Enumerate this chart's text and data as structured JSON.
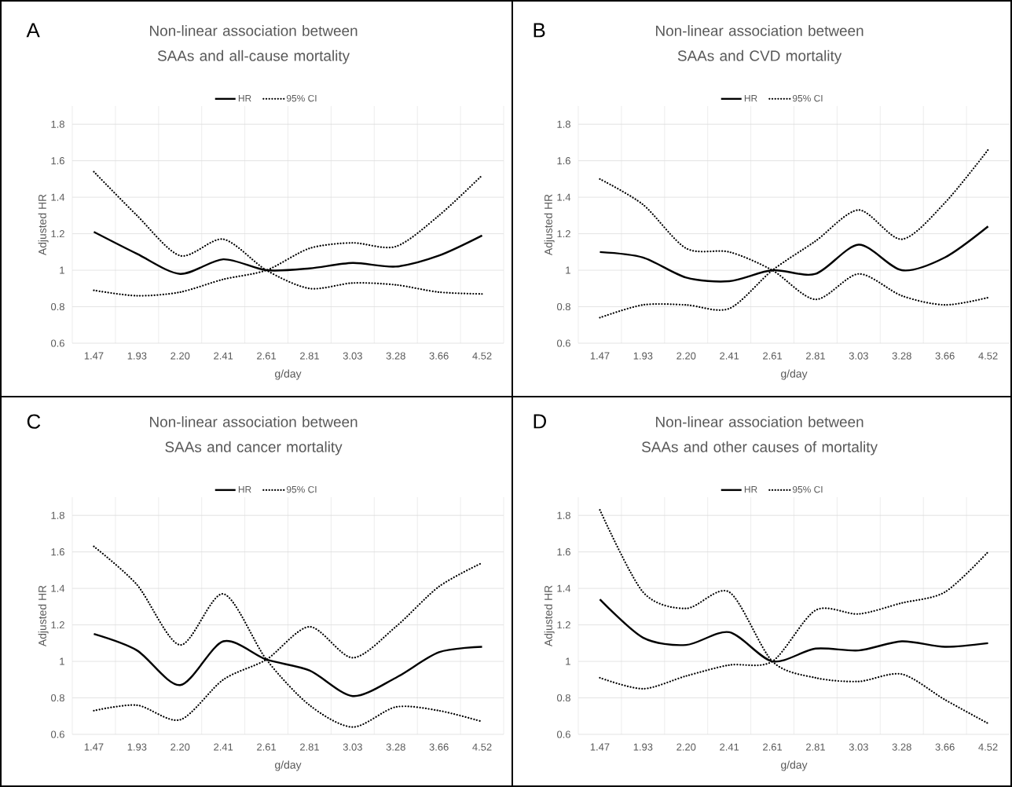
{
  "chart_data": [
    {
      "type": "line",
      "title": "Non-linear association between SAAs and all-cause mortality",
      "xlabel": "g/day",
      "ylabel": "Adjusted HR",
      "annotations": [
        "A"
      ],
      "categories": [
        "1.47",
        "1.93",
        "2.20",
        "2.41",
        "2.61",
        "2.81",
        "3.03",
        "3.28",
        "3.66",
        "4.52"
      ],
      "ylim": [
        0.6,
        1.9
      ],
      "yticks": [
        0.6,
        0.8,
        1,
        1.2,
        1.4,
        1.6,
        1.8
      ],
      "grid": true,
      "legend": "top",
      "series": [
        {
          "name": "HR",
          "color": "#000000",
          "line_style": "solid",
          "values": [
            1.21,
            1.09,
            0.98,
            1.06,
            1.0,
            1.01,
            1.04,
            1.02,
            1.08,
            1.19
          ]
        },
        {
          "name": "95% CI",
          "color": "#000000",
          "line_style": "dotted",
          "values": [
            1.54,
            1.3,
            1.08,
            1.17,
            1.0,
            0.9,
            0.93,
            0.92,
            0.88,
            0.87
          ]
        },
        {
          "color": "#000000",
          "line_style": "dotted",
          "values": [
            0.89,
            0.86,
            0.88,
            0.95,
            1.0,
            1.12,
            1.15,
            1.13,
            1.3,
            1.52
          ]
        }
      ]
    },
    {
      "type": "line",
      "title": "Non-linear association between SAAs and CVD mortality",
      "xlabel": "g/day",
      "ylabel": "Adjusted HR",
      "annotations": [
        "B"
      ],
      "categories": [
        "1.47",
        "1.93",
        "2.20",
        "2.41",
        "2.61",
        "2.81",
        "3.03",
        "3.28",
        "3.66",
        "4.52"
      ],
      "ylim": [
        0.6,
        1.9
      ],
      "yticks": [
        0.6,
        0.8,
        1,
        1.2,
        1.4,
        1.6,
        1.8
      ],
      "grid": true,
      "legend": "top",
      "series": [
        {
          "name": "HR",
          "color": "#000000",
          "line_style": "solid",
          "values": [
            1.1,
            1.07,
            0.96,
            0.94,
            1.0,
            0.98,
            1.14,
            1.0,
            1.07,
            1.24
          ]
        },
        {
          "name": "95% CI",
          "color": "#000000",
          "line_style": "dotted",
          "values": [
            1.5,
            1.36,
            1.12,
            1.1,
            1.0,
            0.84,
            0.98,
            0.86,
            0.81,
            0.85
          ]
        },
        {
          "color": "#000000",
          "line_style": "dotted",
          "values": [
            0.74,
            0.81,
            0.81,
            0.79,
            1.0,
            1.16,
            1.33,
            1.17,
            1.37,
            1.66
          ]
        }
      ]
    },
    {
      "type": "line",
      "title": "Non-linear association between SAAs and cancer mortality",
      "xlabel": "g/day",
      "ylabel": "Adjusted HR",
      "annotations": [
        "C"
      ],
      "categories": [
        "1.47",
        "1.93",
        "2.20",
        "2.41",
        "2.61",
        "2.81",
        "3.03",
        "3.28",
        "3.66",
        "4.52"
      ],
      "ylim": [
        0.6,
        1.9
      ],
      "yticks": [
        0.6,
        0.8,
        1,
        1.2,
        1.4,
        1.6,
        1.8
      ],
      "grid": true,
      "legend": "top",
      "series": [
        {
          "name": "HR",
          "color": "#000000",
          "line_style": "solid",
          "values": [
            1.15,
            1.06,
            0.87,
            1.11,
            1.01,
            0.95,
            0.81,
            0.91,
            1.05,
            1.08
          ]
        },
        {
          "name": "95% CI",
          "color": "#000000",
          "line_style": "dotted",
          "values": [
            1.63,
            1.42,
            1.09,
            1.37,
            1.01,
            0.76,
            0.64,
            0.75,
            0.73,
            0.67
          ]
        },
        {
          "color": "#000000",
          "line_style": "dotted",
          "values": [
            0.73,
            0.76,
            0.68,
            0.9,
            1.01,
            1.19,
            1.02,
            1.19,
            1.41,
            1.54
          ]
        }
      ]
    },
    {
      "type": "line",
      "title": "Non-linear association between SAAs and other causes of mortality",
      "xlabel": "g/day",
      "ylabel": "Adjusted HR",
      "annotations": [
        "D"
      ],
      "categories": [
        "1.47",
        "1.93",
        "2.20",
        "2.41",
        "2.61",
        "2.81",
        "3.03",
        "3.28",
        "3.66",
        "4.52"
      ],
      "ylim": [
        0.6,
        1.9
      ],
      "yticks": [
        0.6,
        0.8,
        1,
        1.2,
        1.4,
        1.6,
        1.8
      ],
      "grid": true,
      "legend": "top",
      "series": [
        {
          "name": "HR",
          "color": "#000000",
          "line_style": "solid",
          "values": [
            1.34,
            1.13,
            1.09,
            1.16,
            1.0,
            1.07,
            1.06,
            1.11,
            1.08,
            1.1
          ]
        },
        {
          "name": "95% CI",
          "color": "#000000",
          "line_style": "dotted",
          "values": [
            1.83,
            1.38,
            1.29,
            1.38,
            1.0,
            0.91,
            0.89,
            0.93,
            0.79,
            0.66
          ]
        },
        {
          "color": "#000000",
          "line_style": "dotted",
          "values": [
            0.91,
            0.85,
            0.92,
            0.98,
            1.0,
            1.28,
            1.26,
            1.32,
            1.38,
            1.6
          ]
        }
      ]
    }
  ]
}
